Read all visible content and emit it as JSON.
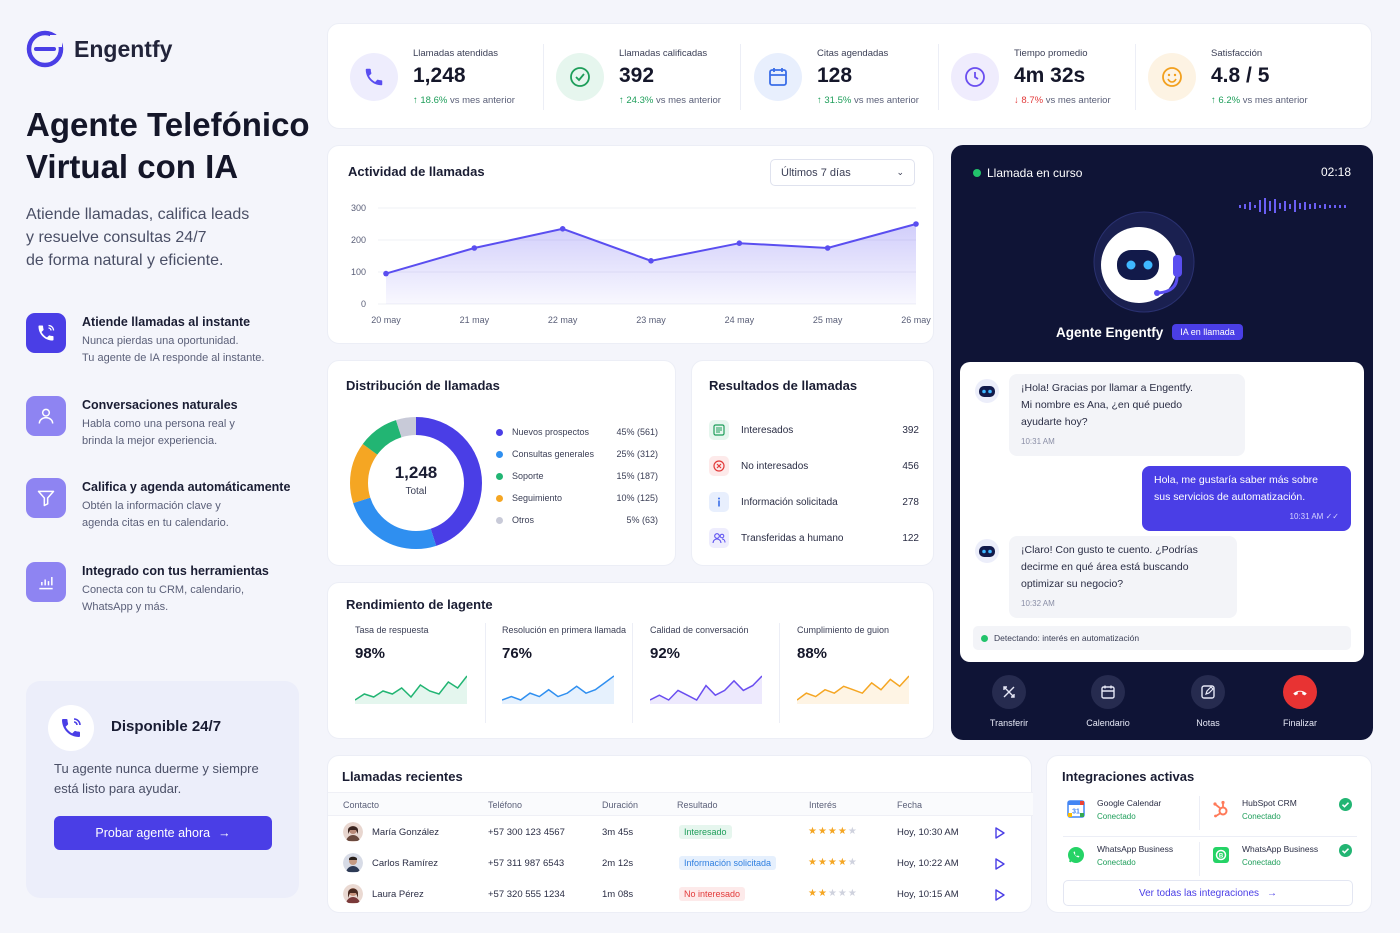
{
  "brand": {
    "name": "Engentfy"
  },
  "hero": {
    "title": "Agente Telefónico Virtual con IA",
    "subtitle_lines": [
      "Atiende llamadas, califica leads",
      "y resuelve consultas 24/7",
      "de forma natural y eficiente."
    ]
  },
  "features": [
    {
      "title": "Atiende llamadas al instante",
      "desc_lines": [
        "Nunca pierdas una oportunidad.",
        "Tu agente de IA responde al instante."
      ],
      "icon": "phone-icon"
    },
    {
      "title": "Conversaciones naturales",
      "desc_lines": [
        "Habla como una persona real y",
        "brinda la mejor experiencia."
      ],
      "icon": "user-icon"
    },
    {
      "title": "Califica y agenda automáticamente",
      "desc_lines": [
        "Obtén la información clave y",
        "agenda citas en tu calendario."
      ],
      "icon": "filter-icon"
    },
    {
      "title": "Integrado con tus herramientas",
      "desc_lines": [
        "Conecta con tu CRM, calendario,",
        "WhatsApp y más."
      ],
      "icon": "chart-icon"
    }
  ],
  "availability": {
    "title": "Disponible 24/7",
    "desc": "Tu agente nunca duerme y siempre está listo para ayudar.",
    "button": "Probar agente ahora"
  },
  "stats": [
    {
      "label": "Llamadas atendidas",
      "value": "1,248",
      "trend": "18.6%",
      "trend_dir": "up",
      "trend_suffix": "vs mes anterior",
      "color": "#5a4ef0",
      "bg": "#eeedfd"
    },
    {
      "label": "Llamadas calificadas",
      "value": "392",
      "trend": "24.3%",
      "trend_dir": "up",
      "trend_suffix": "vs mes anterior",
      "color": "#1e9e5a",
      "bg": "#e6f6ee"
    },
    {
      "label": "Citas agendadas",
      "value": "128",
      "trend": "31.5%",
      "trend_dir": "up",
      "trend_suffix": "vs mes anterior",
      "color": "#3a6ee8",
      "bg": "#e8effd"
    },
    {
      "label": "Tiempo promedio",
      "value": "4m 32s",
      "trend": "8.7%",
      "trend_dir": "down",
      "trend_suffix": "vs mes anterior",
      "color": "#6a4ef0",
      "bg": "#efecfd"
    },
    {
      "label": "Satisfacción",
      "value": "4.8 / 5",
      "trend": "6.2%",
      "trend_dir": "up",
      "trend_suffix": "vs mes anterior",
      "color": "#f2a01e",
      "bg": "#fdf3e3"
    }
  ],
  "activity": {
    "title": "Actividad de llamadas",
    "range": "Últimos 7 días"
  },
  "chart_data": {
    "type": "area",
    "categories": [
      "20 may",
      "21 may",
      "22 may",
      "23 may",
      "24 may",
      "25 may",
      "26 may"
    ],
    "values": [
      95,
      175,
      235,
      135,
      190,
      175,
      250
    ],
    "ylim": [
      0,
      300
    ],
    "yticks": [
      0,
      100,
      200,
      300
    ],
    "color": "#5a4ef0"
  },
  "distribution": {
    "title": "Distribución de llamadas",
    "total": "1,248",
    "total_label": "Total",
    "items": [
      {
        "name": "Nuevos prospectos",
        "value": "45% (561)",
        "pct": 45,
        "color": "#4a3ee6"
      },
      {
        "name": "Consultas generales",
        "value": "25% (312)",
        "pct": 25,
        "color": "#2f8ff0"
      },
      {
        "name": "Soporte",
        "value": "15% (187)",
        "pct": 15,
        "color": "#f5a623"
      },
      {
        "name": "Seguimiento",
        "value": "10% (125)",
        "pct": 10,
        "color": "#22b573"
      },
      {
        "name": "Otros",
        "value": "5% (63)",
        "pct": 5,
        "color": "#c8cad8"
      }
    ]
  },
  "results": {
    "title": "Resultados de llamadas",
    "items": [
      {
        "name": "Interesados",
        "value": "392",
        "icon": "check-list-icon",
        "color": "#1e9e5a",
        "bg": "#e6f6ee"
      },
      {
        "name": "No interesados",
        "value": "456",
        "icon": "x-circle-icon",
        "color": "#e23b3b",
        "bg": "#fdeaea"
      },
      {
        "name": "Información solicitada",
        "value": "278",
        "icon": "info-icon",
        "color": "#3a6ee8",
        "bg": "#e8effd"
      },
      {
        "name": "Transferidas a humano",
        "value": "122",
        "icon": "users-icon",
        "color": "#5a4ef0",
        "bg": "#eeedfd"
      }
    ]
  },
  "performance": {
    "title": "Rendimiento de lagente",
    "items": [
      {
        "label": "Tasa de respuesta",
        "value": "98%",
        "color": "#22b573",
        "spark": [
          4,
          6,
          5,
          7,
          6,
          8,
          5,
          9,
          7,
          6,
          10,
          8,
          12
        ]
      },
      {
        "label": "Resolución en primera llamada",
        "value": "76%",
        "color": "#2f8ff0",
        "spark": [
          4,
          5,
          4,
          6,
          5,
          7,
          5,
          6,
          8,
          6,
          7,
          9,
          11
        ]
      },
      {
        "label": "Calidad de conversación",
        "value": "92%",
        "color": "#6a4ef0",
        "spark": [
          5,
          6,
          5,
          7,
          6,
          5,
          8,
          6,
          7,
          9,
          7,
          8,
          10
        ]
      },
      {
        "label": "Cumplimiento de guion",
        "value": "88%",
        "color": "#f5a623",
        "spark": [
          4,
          6,
          5,
          7,
          6,
          8,
          7,
          6,
          9,
          7,
          10,
          8,
          11
        ]
      }
    ]
  },
  "call": {
    "status": "Llamada en curso",
    "timer": "02:18",
    "agent": "Agente Engentfy",
    "badge": "IA en llamada",
    "messages": [
      {
        "from": "bot",
        "lines": [
          "¡Hola! Gracias por llamar a Engentfy.",
          "Mi nombre es Ana, ¿en qué puedo",
          "ayudarte hoy?"
        ],
        "time": "10:31 AM"
      },
      {
        "from": "user",
        "lines": [
          "Hola, me gustaría saber más sobre",
          "sus servicios de automatización."
        ],
        "time": "10:31 AM"
      },
      {
        "from": "bot",
        "lines": [
          "¡Claro! Con gusto te cuento. ¿Podrías",
          "decirme en qué área está buscando",
          "optimizar su negocio?"
        ],
        "time": "10:32 AM"
      }
    ],
    "detecting": "Detectando: interés en automatización",
    "controls": [
      "Transferir",
      "Calendario",
      "Notas",
      "Finalizar"
    ]
  },
  "recent": {
    "title": "Llamadas recientes",
    "headers": [
      "Contacto",
      "Teléfono",
      "Duración",
      "Resultado",
      "Interés",
      "Fecha"
    ],
    "rows": [
      {
        "name": "María González",
        "phone": "+57 300 123 4567",
        "duration": "3m 45s",
        "result": "Interesado",
        "result_color": "#1e9e5a",
        "result_bg": "#e6f6ee",
        "stars": 4,
        "date": "Hoy, 10:30 AM"
      },
      {
        "name": "Carlos Ramírez",
        "phone": "+57 311 987 6543",
        "duration": "2m 12s",
        "result": "Información solicitada",
        "result_color": "#2f7fe0",
        "result_bg": "#e6f0fd",
        "stars": 4,
        "date": "Hoy, 10:22 AM"
      },
      {
        "name": "Laura Pérez",
        "phone": "+57 320 555 1234",
        "duration": "1m 08s",
        "result": "No interesado",
        "result_color": "#e23b3b",
        "result_bg": "#fdeaea",
        "stars": 2,
        "date": "Hoy, 10:15 AM"
      }
    ]
  },
  "integrations": {
    "title": "Integraciones activas",
    "items": [
      {
        "name": "Google Calendar",
        "status": "Conectado",
        "icon": "google-calendar-icon"
      },
      {
        "name": "HubSpot CRM",
        "status": "Conectado",
        "icon": "hubspot-icon"
      },
      {
        "name": "WhatsApp Business",
        "status": "Conectado",
        "icon": "whatsapp-icon"
      },
      {
        "name": "WhatsApp Business",
        "status": "Conectado",
        "icon": "whatsapp-business-icon"
      }
    ],
    "link": "Ver todas las integraciones"
  }
}
